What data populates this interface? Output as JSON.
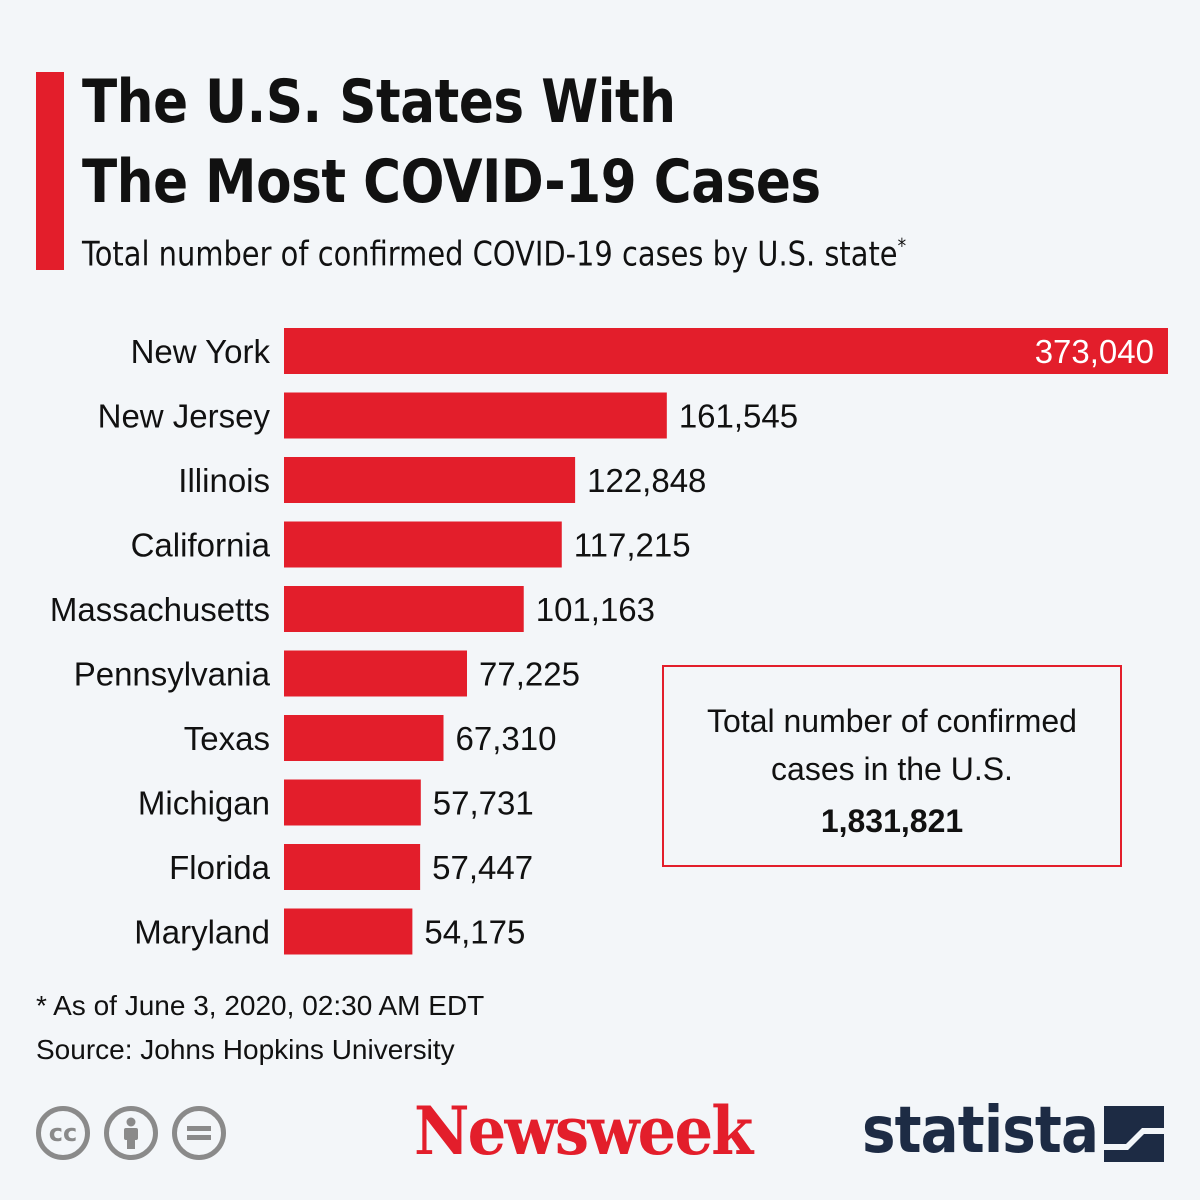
{
  "header": {
    "title_line1": "The U.S. States With",
    "title_line2": "The Most COVID-19 Cases",
    "subtitle": "Total number of confirmed COVID-19 cases by U.S. state",
    "subtitle_mark": "*"
  },
  "chart_data": {
    "type": "bar",
    "orientation": "horizontal",
    "categories": [
      "New York",
      "New Jersey",
      "Illinois",
      "California",
      "Massachusetts",
      "Pennsylvania",
      "Texas",
      "Michigan",
      "Florida",
      "Maryland"
    ],
    "values": [
      373040,
      161545,
      122848,
      117215,
      101163,
      77225,
      67310,
      57731,
      57447,
      54175
    ],
    "value_labels": [
      "373,040",
      "161,545",
      "122,848",
      "117,215",
      "101,163",
      "77,225",
      "67,310",
      "57,731",
      "57,447",
      "54,175"
    ],
    "bar_color": "#e31e2b",
    "grid": false
  },
  "total_box": {
    "label": "Total number of confirmed cases in the U.S.",
    "value": "1,831,821",
    "border_color": "#e31e2b"
  },
  "footer": {
    "footnote": "* As of June 3, 2020, 02:30 AM EDT",
    "source": "Source: Johns Hopkins University",
    "license_icons": [
      "cc-icon",
      "attribution-icon",
      "no-derivatives-icon"
    ],
    "newsweek_logo": "Newsweek",
    "statista_logo": "statista",
    "newsweek_color": "#e31e2b",
    "statista_color": "#1d2b44"
  }
}
